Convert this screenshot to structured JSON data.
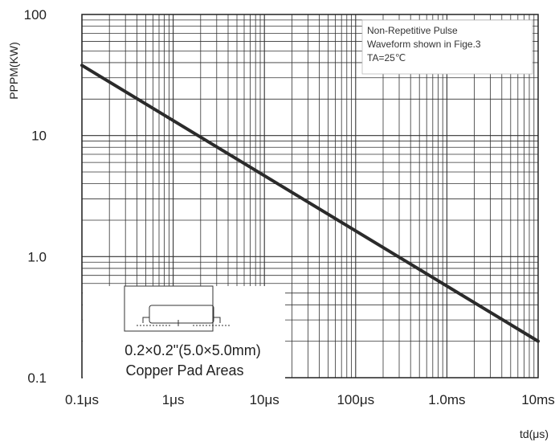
{
  "chart_data": {
    "type": "line",
    "xscale": "log",
    "yscale": "log",
    "xlabel": "td(μs)",
    "ylabel": "PPPM(KW)",
    "xlim": [
      0.1,
      10000
    ],
    "ylim": [
      0.1,
      100
    ],
    "x_tick_values": [
      0.1,
      1,
      10,
      100,
      1000,
      10000
    ],
    "x_tick_labels": [
      "0.1μs",
      "1μs",
      "10μs",
      "100μs",
      "1.0ms",
      "10ms"
    ],
    "y_tick_values": [
      0.1,
      1,
      10,
      100
    ],
    "y_tick_labels": [
      "0.1",
      "1.0",
      "10",
      "100"
    ],
    "grid": true,
    "series": [
      {
        "x": [
          0.1,
          10000
        ],
        "y": [
          38,
          0.2
        ],
        "color": "#2b2b2b"
      }
    ],
    "annotations": {
      "note_lines": [
        "Non-Repetitive Pulse",
        "Waveform shown in Fige.3",
        "TA=25℃"
      ],
      "pad_lines": [
        "0.2×0.2\"(5.0×5.0mm)",
        "Copper Pad Areas"
      ]
    }
  }
}
